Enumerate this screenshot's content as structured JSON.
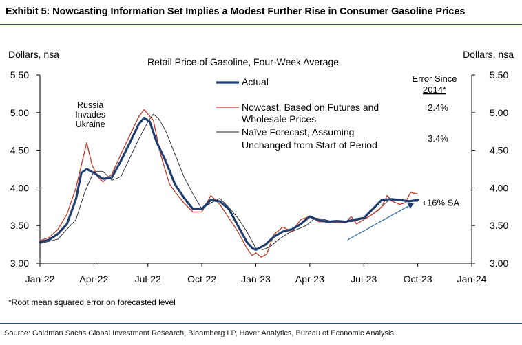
{
  "exhibit": {
    "title": "Exhibit 5: Nowcasting Information Set Implies a Modest Further Rise in Consumer Gasoline Prices",
    "footnote": "*Root mean squared error on forecasted level",
    "source": "Source: Goldman Sachs Global Investment Research, Bloomberg LP, Haver Analytics, Bureau of Economic Analysis"
  },
  "colors": {
    "actual": "#1f3d6e",
    "nowcast": "#c0392b",
    "naive": "#222222",
    "trend": "#2f6aa8",
    "rule": "#1e5aa0"
  },
  "chart_data": {
    "type": "line",
    "title": "Retail Price of Gasoline, Four-Week Average",
    "ylabel_left": "Dollars, nsa",
    "ylabel_right": "Dollars, nsa",
    "ylim": [
      3.0,
      5.5
    ],
    "yticks": [
      3.0,
      3.5,
      4.0,
      4.5,
      5.0,
      5.5
    ],
    "ytick_labels": [
      "3.00",
      "3.50",
      "4.00",
      "4.50",
      "5.00",
      "5.50"
    ],
    "xlim_months": [
      0,
      24
    ],
    "xticks_months": [
      0,
      3,
      6,
      9,
      12,
      15,
      18,
      21,
      24
    ],
    "xtick_labels": [
      "Jan-22",
      "Apr-22",
      "Jul-22",
      "Oct-22",
      "Jan-23",
      "Apr-23",
      "Jul-23",
      "Oct-23",
      "Jan-24"
    ],
    "legend_header": [
      "Error Since",
      "2014*"
    ],
    "series": [
      {
        "name": "Actual",
        "label_lines": [
          "Actual"
        ],
        "error": "",
        "x": [
          0,
          0.5,
          1,
          1.5,
          2,
          2.3,
          2.6,
          3,
          3.5,
          4,
          4.5,
          5,
          5.5,
          5.8,
          6.1,
          6.5,
          7,
          7.5,
          8,
          8.5,
          9,
          9.5,
          10,
          10.5,
          11,
          11.5,
          11.8,
          12,
          12.5,
          13,
          13.5,
          14,
          14.5,
          15,
          15.5,
          16,
          16.5,
          17,
          17.5,
          18,
          18.5,
          19,
          19.5,
          20,
          20.5,
          21
        ],
        "values": [
          3.28,
          3.31,
          3.39,
          3.52,
          3.85,
          4.2,
          4.25,
          4.2,
          4.12,
          4.14,
          4.36,
          4.6,
          4.85,
          4.93,
          4.88,
          4.6,
          4.35,
          4.05,
          3.87,
          3.72,
          3.72,
          3.84,
          3.82,
          3.72,
          3.5,
          3.28,
          3.2,
          3.18,
          3.24,
          3.35,
          3.42,
          3.45,
          3.52,
          3.62,
          3.57,
          3.55,
          3.56,
          3.55,
          3.58,
          3.6,
          3.72,
          3.84,
          3.85,
          3.84,
          3.82,
          3.84
        ]
      },
      {
        "name": "Nowcast, Based on Futures and Wholesale Prices",
        "label_lines": [
          "Nowcast, Based on Futures and",
          "Wholesale Prices"
        ],
        "error": "2.4%",
        "x": [
          0,
          0.5,
          1,
          1.5,
          2,
          2.3,
          2.6,
          2.9,
          3.2,
          3.5,
          4,
          4.5,
          5,
          5.5,
          5.8,
          6,
          6.3,
          6.7,
          7.2,
          7.6,
          8,
          8.5,
          9,
          9.5,
          10,
          10.5,
          11,
          11.5,
          11.8,
          12,
          12.3,
          12.6,
          13,
          13.5,
          14,
          14.5,
          15,
          15.5,
          16,
          16.5,
          17,
          17.3,
          17.6,
          18,
          18.5,
          19,
          19.3,
          19.6,
          20,
          20.3,
          20.6,
          21
        ],
        "values": [
          3.3,
          3.34,
          3.45,
          3.65,
          4.0,
          4.3,
          4.6,
          4.3,
          4.15,
          4.08,
          4.18,
          4.45,
          4.7,
          4.95,
          5.04,
          4.98,
          4.9,
          4.45,
          4.05,
          3.92,
          3.8,
          3.68,
          3.68,
          3.9,
          3.78,
          3.6,
          3.42,
          3.2,
          3.1,
          3.14,
          3.08,
          3.12,
          3.38,
          3.48,
          3.42,
          3.58,
          3.62,
          3.55,
          3.55,
          3.54,
          3.54,
          3.62,
          3.52,
          3.58,
          3.65,
          3.75,
          3.9,
          3.82,
          3.78,
          3.8,
          3.94,
          3.92
        ]
      },
      {
        "name": "Naive Forecast, Assuming Unchanged from Start of Period",
        "label_lines": [
          "Naïve Forecast, Assuming",
          "Unchanged from Start of Period"
        ],
        "error": "3.4%",
        "x": [
          0,
          0.5,
          1,
          1.5,
          2,
          2.5,
          3,
          3.5,
          4,
          4.5,
          5,
          5.5,
          6,
          6.3,
          6.6,
          7,
          7.5,
          8,
          8.5,
          9,
          9.5,
          10,
          10.5,
          11,
          11.5,
          12,
          12.4,
          12.8,
          13.3,
          13.8,
          14.3,
          14.8,
          15.3,
          15.8,
          16.3,
          16.8,
          17.3,
          17.8,
          18.3,
          18.8,
          19.3,
          19.8,
          20.3,
          20.8,
          21
        ],
        "values": [
          3.26,
          3.29,
          3.32,
          3.45,
          3.58,
          3.95,
          4.22,
          4.22,
          4.1,
          4.15,
          4.4,
          4.65,
          4.88,
          4.98,
          4.92,
          4.75,
          4.45,
          4.15,
          3.92,
          3.72,
          3.8,
          3.86,
          3.74,
          3.6,
          3.42,
          3.2,
          3.18,
          3.22,
          3.32,
          3.4,
          3.45,
          3.5,
          3.6,
          3.58,
          3.55,
          3.56,
          3.55,
          3.58,
          3.62,
          3.7,
          3.82,
          3.84,
          3.84,
          3.82,
          3.82
        ]
      }
    ],
    "annotations": [
      {
        "text_lines": [
          "Russia",
          "Invades",
          "Ukraine"
        ],
        "month": 2.8
      },
      {
        "text": "+16% SA",
        "trend_start": [
          17.1,
          3.31
        ],
        "trend_end": [
          20.8,
          3.8
        ]
      }
    ]
  }
}
